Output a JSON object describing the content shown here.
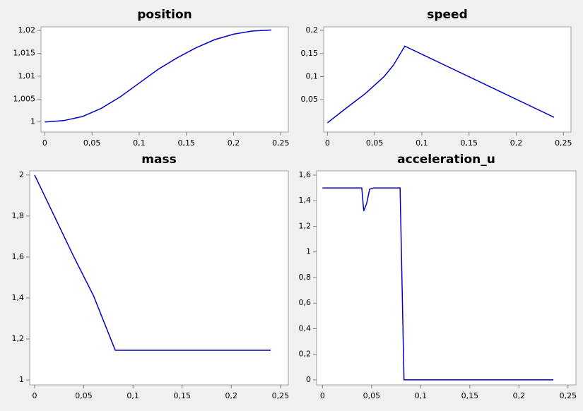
{
  "chart_data": [
    {
      "type": "line",
      "title": "position",
      "color": "#0000c8",
      "x": [
        0,
        0.02,
        0.04,
        0.06,
        0.08,
        0.1,
        0.12,
        0.14,
        0.16,
        0.18,
        0.2,
        0.22,
        0.24
      ],
      "values": [
        1.0,
        1.0003,
        1.0012,
        1.003,
        1.0055,
        1.0085,
        1.0115,
        1.014,
        1.0162,
        1.018,
        1.0192,
        1.0199,
        1.0201
      ],
      "xlim": [
        -0.004,
        0.258
      ],
      "ylim": [
        0.9978,
        1.0208
      ],
      "xticks": [
        0,
        {
          "value": 0.05,
          "label": "0,05"
        },
        {
          "value": 0.1,
          "label": "0,1"
        },
        {
          "value": 0.15,
          "label": "0,15"
        },
        {
          "value": 0.2,
          "label": "0,2"
        },
        {
          "value": 0.25,
          "label": "0,25"
        }
      ],
      "yticks": [
        1,
        {
          "value": 1.005,
          "label": "1,005"
        },
        {
          "value": 1.01,
          "label": "1,01"
        },
        {
          "value": 1.015,
          "label": "1,015"
        },
        {
          "value": 1.02,
          "label": "1,02"
        }
      ]
    },
    {
      "type": "line",
      "title": "speed",
      "color": "#0000c8",
      "x": [
        0,
        0.02,
        0.04,
        0.06,
        0.07,
        0.082,
        0.24
      ],
      "values": [
        0.0,
        0.032,
        0.063,
        0.1,
        0.125,
        0.166,
        0.012
      ],
      "xlim": [
        -0.004,
        0.258
      ],
      "ylim": [
        -0.02,
        0.2077
      ],
      "xticks": [
        0,
        {
          "value": 0.05,
          "label": "0,05"
        },
        {
          "value": 0.1,
          "label": "0,1"
        },
        {
          "value": 0.15,
          "label": "0,15"
        },
        {
          "value": 0.2,
          "label": "0,2"
        },
        {
          "value": 0.25,
          "label": "0,25"
        }
      ],
      "yticks": [
        {
          "value": 0.05,
          "label": "0,05"
        },
        {
          "value": 0.1,
          "label": "0,1"
        },
        {
          "value": 0.15,
          "label": "0,15"
        },
        {
          "value": 0.2,
          "label": "0,2"
        }
      ]
    },
    {
      "type": "line",
      "title": "mass",
      "color": "#0000c8",
      "x": [
        0,
        0.02,
        0.04,
        0.06,
        0.082,
        0.24
      ],
      "values": [
        2.0,
        1.8,
        1.6,
        1.41,
        1.145,
        1.145
      ],
      "xlim": [
        -0.005,
        0.258
      ],
      "ylim": [
        0.976,
        2.02
      ],
      "xticks": [
        0,
        {
          "value": 0.05,
          "label": "0,05"
        },
        {
          "value": 0.1,
          "label": "0,1"
        },
        {
          "value": 0.15,
          "label": "0,15"
        },
        {
          "value": 0.2,
          "label": "0,2"
        },
        {
          "value": 0.25,
          "label": "0,25"
        }
      ],
      "yticks": [
        1,
        {
          "value": 1.2,
          "label": "1,2"
        },
        {
          "value": 1.4,
          "label": "1,4"
        },
        {
          "value": 1.6,
          "label": "1,6"
        },
        {
          "value": 1.8,
          "label": "1,8"
        },
        2
      ]
    },
    {
      "type": "line",
      "title": "acceleration_u",
      "color": "#0000c8",
      "x": [
        0,
        0.04,
        0.042,
        0.045,
        0.048,
        0.052,
        0.079,
        0.083,
        0.235
      ],
      "values": [
        1.5,
        1.5,
        1.32,
        1.38,
        1.49,
        1.5,
        1.5,
        0,
        0
      ],
      "xlim": [
        -0.006,
        0.258
      ],
      "ylim": [
        -0.039,
        1.633
      ],
      "xticks": [
        0,
        {
          "value": 0.05,
          "label": "0,05"
        },
        {
          "value": 0.1,
          "label": "0,1"
        },
        {
          "value": 0.15,
          "label": "0,15"
        },
        {
          "value": 0.2,
          "label": "0,2"
        },
        {
          "value": 0.25,
          "label": "0,25"
        }
      ],
      "yticks": [
        0,
        {
          "value": 0.2,
          "label": "0,2"
        },
        {
          "value": 0.4,
          "label": "0,4"
        },
        {
          "value": 0.6,
          "label": "0,6"
        },
        {
          "value": 0.8,
          "label": "0,8"
        },
        1,
        {
          "value": 1.2,
          "label": "1,2"
        },
        {
          "value": 1.4,
          "label": "1,4"
        },
        {
          "value": 1.6,
          "label": "1,6"
        }
      ]
    }
  ]
}
